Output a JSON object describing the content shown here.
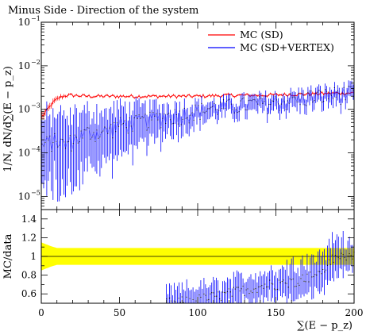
{
  "chart_data": {
    "type": "line",
    "title": "Minus Side - Direction of the system",
    "xlabel": "∑(E − p_z)",
    "x_range": [
      0,
      200
    ],
    "x_ticks": [
      0,
      50,
      100,
      150,
      200
    ],
    "top_panel": {
      "ylabel": "1/N, dN/d∑(E − p_z)",
      "y_scale": "log",
      "y_range": [
        5e-06,
        0.1
      ],
      "y_ticks": [
        {
          "value": 0.1,
          "label": "10",
          "exp": "−1"
        },
        {
          "value": 0.01,
          "label": "10",
          "exp": "−2"
        },
        {
          "value": 0.001,
          "label": "10",
          "exp": "−3"
        },
        {
          "value": 0.0001,
          "label": "10",
          "exp": "−4"
        },
        {
          "value": 1e-05,
          "label": "10",
          "exp": "−5"
        }
      ],
      "legend_position": "top-right",
      "series": [
        {
          "name": "MC (SD)",
          "color": "#ff0000",
          "x": [
            1,
            3,
            5,
            8,
            12,
            16,
            20,
            30,
            40,
            60,
            80,
            100,
            120,
            140,
            160,
            180,
            200
          ],
          "y": [
            0.0007,
            0.0009,
            0.0011,
            0.0015,
            0.0019,
            0.0021,
            0.0021,
            0.002,
            0.002,
            0.002,
            0.002,
            0.002,
            0.0021,
            0.0021,
            0.0022,
            0.0023,
            0.0024
          ]
        },
        {
          "name": "MC (SD+VERTEX)",
          "color": "#0000ff",
          "x": [
            1,
            5,
            10,
            15,
            20,
            30,
            40,
            50,
            60,
            70,
            80,
            90,
            100,
            110,
            120,
            130,
            140,
            150,
            160,
            170,
            180,
            190,
            200
          ],
          "y": [
            0.00015,
            0.00018,
            0.0002,
            0.00015,
            0.0002,
            0.0003,
            0.0003,
            0.00045,
            0.0005,
            0.0006,
            0.0007,
            0.0008,
            0.00095,
            0.0011,
            0.0012,
            0.0013,
            0.0014,
            0.0015,
            0.0017,
            0.0019,
            0.0021,
            0.0023,
            0.0024
          ]
        }
      ]
    },
    "ratio_panel": {
      "ylabel": "MC/data",
      "y_range": [
        0.5,
        1.5
      ],
      "y_ticks": [
        {
          "value": 0.6,
          "label": "0.6"
        },
        {
          "value": 0.8,
          "label": "0.8"
        },
        {
          "value": 1,
          "label": "1"
        },
        {
          "value": 1.2,
          "label": "1.2"
        },
        {
          "value": 1.4,
          "label": "1.4"
        }
      ],
      "band_color": "#ffff00",
      "band": {
        "x": [
          0,
          3,
          6,
          10,
          20,
          40,
          60,
          80,
          100,
          120,
          140,
          160,
          180,
          200
        ],
        "half_width": [
          0.15,
          0.13,
          0.11,
          0.09,
          0.09,
          0.09,
          0.09,
          0.09,
          0.09,
          0.09,
          0.09,
          0.09,
          0.09,
          0.09
        ]
      },
      "series": {
        "color": "#0000ff",
        "x": [
          85,
          95,
          105,
          115,
          125,
          135,
          145,
          155,
          165,
          175,
          180,
          185,
          190,
          195,
          200
        ],
        "y": [
          0.5,
          0.52,
          0.55,
          0.58,
          0.62,
          0.66,
          0.7,
          0.7,
          0.75,
          0.8,
          0.85,
          0.95,
          1.0,
          1.0,
          1.0
        ]
      }
    }
  }
}
